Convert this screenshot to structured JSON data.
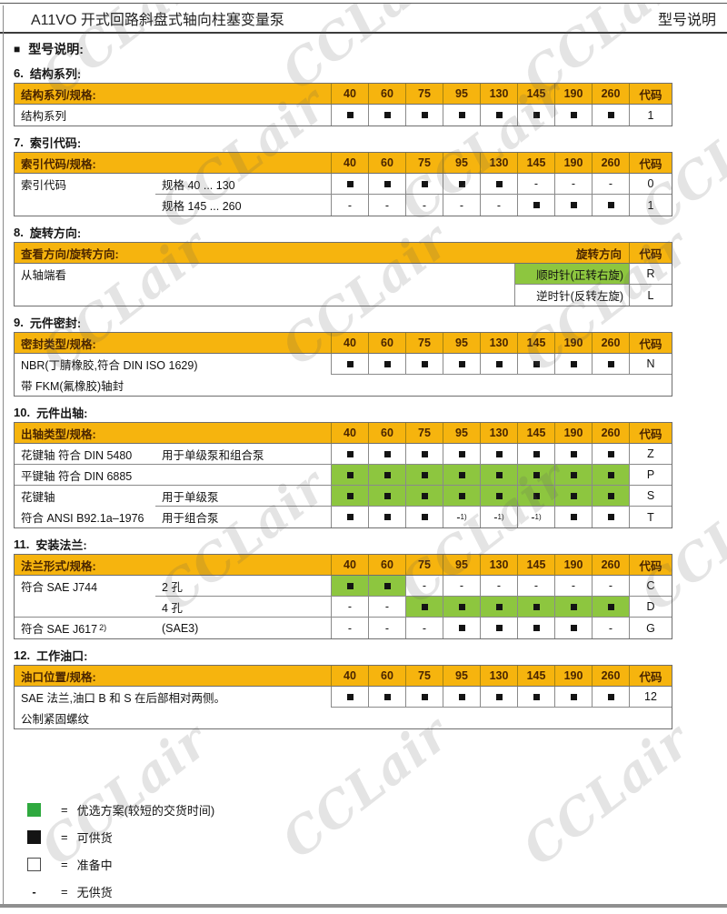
{
  "page": {
    "title": "A11VO 开式回路斜盘式轴向柱塞变量泵",
    "corner_label": "型号说明",
    "heading_bullet": "■",
    "heading": "型号说明:",
    "watermark_text": "CCLair"
  },
  "colors": {
    "header_yellow": "#F6B40E",
    "header_text": "#4A2500",
    "cell_green": "#8DC63F",
    "legend_green": "#2FA93F",
    "square_black": "#141414"
  },
  "size_headers": [
    "40",
    "60",
    "75",
    "95",
    "130",
    "145",
    "190",
    "260"
  ],
  "code_header": "代码",
  "footnote_sup": "1)",
  "tables": [
    {
      "number": "6.",
      "title": "结构系列:",
      "kind": "sizes",
      "head_label": "结构系列/规格:",
      "rows": [
        {
          "label": "结构系列",
          "cells": [
            "sq",
            "sq",
            "sq",
            "sq",
            "sq",
            "sq",
            "sq",
            "sq"
          ],
          "code": "1",
          "divider": "none"
        }
      ]
    },
    {
      "number": "7.",
      "title": "索引代码:",
      "kind": "sizes",
      "head_label": "索引代码/规格:",
      "rows": [
        {
          "label": "索引代码",
          "sub": "规格 40 ... 130",
          "cells": [
            "sq",
            "sq",
            "sq",
            "sq",
            "sq",
            "-",
            "-",
            "-"
          ],
          "code": "0",
          "divider": "partial"
        },
        {
          "label": "",
          "sub": "规格 145 ... 260",
          "cells": [
            "-",
            "-",
            "-",
            "-",
            "-",
            "sq",
            "sq",
            "sq"
          ],
          "code": "1",
          "divider": "none"
        }
      ]
    },
    {
      "number": "8.",
      "title": "旋转方向:",
      "kind": "rotation",
      "head_label": "查看方向/旋转方向:",
      "head_right": "旋转方向",
      "rows": [
        {
          "label": "从轴端看",
          "direction": "顺时针(正转右旋)",
          "green": true,
          "code": "R",
          "divider": "values"
        },
        {
          "label": "",
          "direction": "逆时针(反转左旋)",
          "green": false,
          "code": "L",
          "divider": "none"
        }
      ]
    },
    {
      "number": "9.",
      "title": "元件密封:",
      "kind": "sizes",
      "head_label": "密封类型/规格:",
      "rows": [
        {
          "label": "NBR(丁腈橡胶,符合 DIN ISO 1629)",
          "cells": [
            "sq",
            "sq",
            "sq",
            "sq",
            "sq",
            "sq",
            "sq",
            "sq"
          ],
          "code": "N",
          "divider": "values"
        },
        {
          "label": "带 FKM(氟橡胶)轴封",
          "full": true,
          "divider": "none"
        }
      ]
    },
    {
      "number": "10.",
      "title": "元件出轴:",
      "kind": "sizes",
      "head_label": "出轴类型/规格:",
      "rows": [
        {
          "label": "花键轴  符合  DIN 5480",
          "sub": "用于单级泵和组合泵",
          "cells": [
            "sq",
            "sq",
            "sq",
            "sq",
            "sq",
            "sq",
            "sq",
            "sq"
          ],
          "code": "Z",
          "divider": "full"
        },
        {
          "label": "平键轴  符合  DIN 6885",
          "sub": "",
          "cells": [
            "gsq",
            "gsq",
            "gsq",
            "gsq",
            "gsq",
            "gsq",
            "gsq",
            "gsq"
          ],
          "code": "P",
          "divider": "full"
        },
        {
          "label": "花键轴",
          "sub": "用于单级泵",
          "cells": [
            "gsq",
            "gsq",
            "gsq",
            "gsq",
            "gsq",
            "gsq",
            "gsq",
            "gsq"
          ],
          "code": "S",
          "divider": "partial"
        },
        {
          "label": "符合  ANSI B92.1a–1976",
          "sub": "用于组合泵",
          "cells": [
            "sq",
            "sq",
            "sq",
            "fn1",
            "fn1",
            "fn1",
            "sq",
            "sq"
          ],
          "code": "T",
          "divider": "none"
        }
      ]
    },
    {
      "number": "11.",
      "title": "安装法兰:",
      "kind": "sizes",
      "head_label": "法兰形式/规格:",
      "rows": [
        {
          "label": "符合 SAE J744",
          "sub": "2 孔",
          "cells": [
            "gsq",
            "gsq",
            "-",
            "-",
            "-",
            "-",
            "-",
            "-"
          ],
          "code": "C",
          "divider": "partial"
        },
        {
          "label": "",
          "sub": "4 孔",
          "cells": [
            "-",
            "-",
            "gsq",
            "gsq",
            "gsq",
            "gsq",
            "gsq",
            "gsq"
          ],
          "code": "D",
          "divider": "full"
        },
        {
          "label": "符合 SAE J617",
          "label_sup": "2)",
          "sub": "(SAE3)",
          "cells": [
            "-",
            "-",
            "-",
            "sq",
            "sq",
            "sq",
            "sq",
            "-"
          ],
          "code": "G",
          "divider": "none"
        }
      ]
    },
    {
      "number": "12.",
      "title": "工作油口:",
      "kind": "sizes",
      "head_label": "油口位置/规格:",
      "rows": [
        {
          "label": "SAE 法兰,油口 B 和 S 在后部相对两侧。",
          "cells": [
            "sq",
            "sq",
            "sq",
            "sq",
            "sq",
            "sq",
            "sq",
            "sq"
          ],
          "code": "12",
          "divider": "values"
        },
        {
          "label": "公制紧固螺纹",
          "full": true,
          "divider": "none"
        }
      ]
    }
  ],
  "legend": [
    {
      "symbol": "green-square",
      "eq": "=",
      "text": "优选方案(较短的交货时间)"
    },
    {
      "symbol": "black-square",
      "eq": "=",
      "text": "可供货"
    },
    {
      "symbol": "white-square",
      "eq": "=",
      "text": "准备中"
    },
    {
      "symbol": "dash",
      "marker": "-",
      "eq": "=",
      "text": "无供货"
    }
  ]
}
